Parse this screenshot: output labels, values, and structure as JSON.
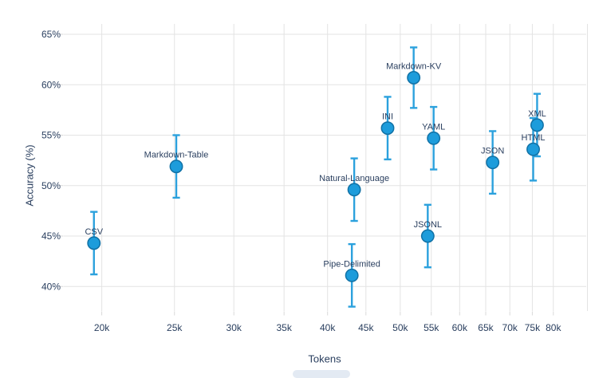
{
  "chart_data": {
    "type": "scatter",
    "title": "",
    "xlabel": "Tokens",
    "ylabel": "Accuracy (%)",
    "x_axis": {
      "scale": "log",
      "range": [
        17800,
        88500
      ],
      "tick_values": [
        20000,
        25000,
        30000,
        35000,
        40000,
        45000,
        50000,
        55000,
        60000,
        65000,
        70000,
        75000,
        80000
      ],
      "tick_labels": [
        "20k",
        "25k",
        "30k",
        "35k",
        "40k",
        "45k",
        "50k",
        "55k",
        "60k",
        "65k",
        "70k",
        "75k",
        "80k"
      ],
      "grid": true
    },
    "y_axis": {
      "scale": "linear",
      "range": [
        37.5,
        66.6
      ],
      "tick_values": [
        40,
        45,
        50,
        55,
        60,
        65
      ],
      "tick_labels": [
        "40%",
        "45%",
        "50%",
        "55%",
        "60%",
        "65%"
      ],
      "grid": true
    },
    "legend": "none",
    "error_bars": "symmetric, ~±3.1 percentage points, with caps",
    "points": [
      {
        "label": "CSV",
        "tokens": 19524,
        "accuracy": 44.3,
        "err": 3.1
      },
      {
        "label": "Markdown-Table",
        "tokens": 25140,
        "accuracy": 51.9,
        "err": 3.1
      },
      {
        "label": "Pipe-Delimited",
        "tokens": 43098,
        "accuracy": 41.1,
        "err": 3.1
      },
      {
        "label": "Natural-Language",
        "tokens": 43411,
        "accuracy": 49.6,
        "err": 3.1
      },
      {
        "label": "INI",
        "tokens": 48100,
        "accuracy": 55.7,
        "err": 3.1
      },
      {
        "label": "Markdown-KV",
        "tokens": 52104,
        "accuracy": 60.7,
        "err": 3.0
      },
      {
        "label": "JSONL",
        "tokens": 54407,
        "accuracy": 45.0,
        "err": 3.1
      },
      {
        "label": "YAML",
        "tokens": 55395,
        "accuracy": 54.7,
        "err": 3.1
      },
      {
        "label": "JSON",
        "tokens": 66396,
        "accuracy": 52.3,
        "err": 3.1
      },
      {
        "label": "HTML",
        "tokens": 75204,
        "accuracy": 53.6,
        "err": 3.1
      },
      {
        "label": "XML",
        "tokens": 76114,
        "accuracy": 56.0,
        "err": 3.1
      }
    ],
    "colors": {
      "marker_fill": "#1d9cdb",
      "marker_border": "#1171a5",
      "error_bar": "#2ba1dd",
      "grid": "#e3e3e3",
      "tick_mark": "#d9d9d9",
      "text": "#2a3f5f",
      "background": "#ffffff"
    }
  }
}
